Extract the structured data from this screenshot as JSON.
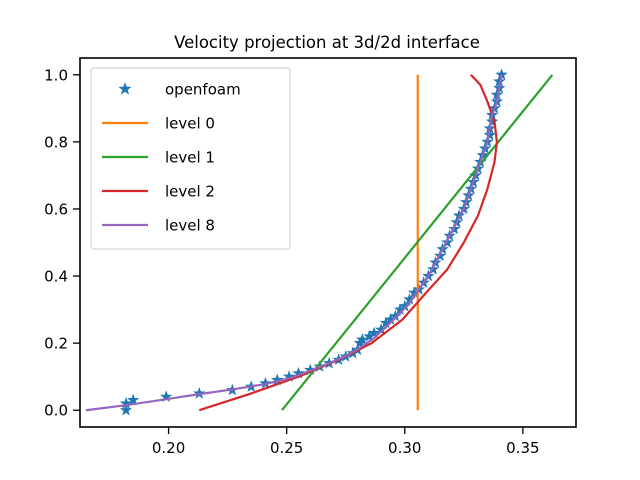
{
  "chart_data": {
    "type": "line",
    "title": "Velocity projection at 3d/2d interface",
    "xlabel": "",
    "ylabel": "",
    "xlim": [
      0.1625,
      0.3725
    ],
    "ylim": [
      -0.05,
      1.05
    ],
    "xticks": [
      {
        "value": 0.2,
        "label": "0.20"
      },
      {
        "value": 0.25,
        "label": "0.25"
      },
      {
        "value": 0.3,
        "label": "0.30"
      },
      {
        "value": 0.35,
        "label": "0.35"
      }
    ],
    "yticks": [
      {
        "value": 0.0,
        "label": "0.0"
      },
      {
        "value": 0.2,
        "label": "0.2"
      },
      {
        "value": 0.4,
        "label": "0.4"
      },
      {
        "value": 0.6,
        "label": "0.6"
      },
      {
        "value": 0.8,
        "label": "0.8"
      },
      {
        "value": 1.0,
        "label": "1.0"
      }
    ],
    "grid": false,
    "legend": {
      "placement": "top-left"
    },
    "series": [
      {
        "name": "openfoam",
        "kind": "scatter",
        "marker": "star",
        "color": "#1f77b4",
        "points": [
          [
            0.182,
            0.0
          ],
          [
            0.182,
            0.02
          ],
          [
            0.185,
            0.03
          ],
          [
            0.199,
            0.04
          ],
          [
            0.213,
            0.05
          ],
          [
            0.227,
            0.06
          ],
          [
            0.235,
            0.07
          ],
          [
            0.241,
            0.08
          ],
          [
            0.246,
            0.09
          ],
          [
            0.251,
            0.1
          ],
          [
            0.255,
            0.11
          ],
          [
            0.26,
            0.12
          ],
          [
            0.264,
            0.13
          ],
          [
            0.268,
            0.14
          ],
          [
            0.272,
            0.15
          ],
          [
            0.275,
            0.16
          ],
          [
            0.278,
            0.17
          ],
          [
            0.28,
            0.18
          ],
          [
            0.281,
            0.2
          ],
          [
            0.282,
            0.21
          ],
          [
            0.285,
            0.22
          ],
          [
            0.287,
            0.23
          ],
          [
            0.29,
            0.24
          ],
          [
            0.292,
            0.26
          ],
          [
            0.294,
            0.27
          ],
          [
            0.296,
            0.28
          ],
          [
            0.298,
            0.3
          ],
          [
            0.3,
            0.31
          ],
          [
            0.302,
            0.33
          ],
          [
            0.304,
            0.35
          ],
          [
            0.306,
            0.36
          ],
          [
            0.308,
            0.38
          ],
          [
            0.31,
            0.4
          ],
          [
            0.312,
            0.42
          ],
          [
            0.313,
            0.44
          ],
          [
            0.315,
            0.46
          ],
          [
            0.316,
            0.48
          ],
          [
            0.318,
            0.5
          ],
          [
            0.319,
            0.52
          ],
          [
            0.321,
            0.54
          ],
          [
            0.322,
            0.56
          ],
          [
            0.323,
            0.58
          ],
          [
            0.325,
            0.6
          ],
          [
            0.326,
            0.62
          ],
          [
            0.327,
            0.64
          ],
          [
            0.328,
            0.66
          ],
          [
            0.329,
            0.68
          ],
          [
            0.33,
            0.7
          ],
          [
            0.331,
            0.72
          ],
          [
            0.332,
            0.74
          ],
          [
            0.333,
            0.76
          ],
          [
            0.334,
            0.78
          ],
          [
            0.335,
            0.8
          ],
          [
            0.336,
            0.82
          ],
          [
            0.336,
            0.84
          ],
          [
            0.337,
            0.86
          ],
          [
            0.337,
            0.88
          ],
          [
            0.338,
            0.9
          ],
          [
            0.339,
            0.92
          ],
          [
            0.339,
            0.94
          ],
          [
            0.34,
            0.96
          ],
          [
            0.34,
            0.98
          ],
          [
            0.341,
            1.0
          ]
        ]
      },
      {
        "name": "level 0",
        "kind": "line",
        "color": "#ff7f0e",
        "points": [
          [
            0.3055,
            0.0
          ],
          [
            0.3055,
            1.0
          ]
        ]
      },
      {
        "name": "level 1",
        "kind": "line",
        "color": "#2ca02c",
        "points": [
          [
            0.248,
            0.0
          ],
          [
            0.3625,
            1.0
          ]
        ]
      },
      {
        "name": "level 2",
        "kind": "line",
        "color": "#d62728",
        "points": [
          [
            0.213,
            0.0
          ],
          [
            0.235,
            0.05
          ],
          [
            0.255,
            0.1
          ],
          [
            0.272,
            0.15
          ],
          [
            0.286,
            0.2
          ],
          [
            0.299,
            0.27
          ],
          [
            0.309,
            0.35
          ],
          [
            0.318,
            0.42
          ],
          [
            0.325,
            0.5
          ],
          [
            0.331,
            0.58
          ],
          [
            0.335,
            0.66
          ],
          [
            0.338,
            0.74
          ],
          [
            0.339,
            0.8
          ],
          [
            0.338,
            0.86
          ],
          [
            0.335,
            0.92
          ],
          [
            0.332,
            0.97
          ],
          [
            0.328,
            1.0
          ]
        ]
      },
      {
        "name": "level 8",
        "kind": "line",
        "color": "#9467bd",
        "points": [
          [
            0.165,
            0.0
          ],
          [
            0.182,
            0.015
          ],
          [
            0.199,
            0.033
          ],
          [
            0.213,
            0.048
          ],
          [
            0.227,
            0.062
          ],
          [
            0.241,
            0.078
          ],
          [
            0.251,
            0.095
          ],
          [
            0.26,
            0.118
          ],
          [
            0.268,
            0.14
          ],
          [
            0.275,
            0.162
          ],
          [
            0.281,
            0.186
          ],
          [
            0.287,
            0.215
          ],
          [
            0.292,
            0.248
          ],
          [
            0.297,
            0.282
          ],
          [
            0.302,
            0.32
          ],
          [
            0.306,
            0.36
          ],
          [
            0.31,
            0.4
          ],
          [
            0.313,
            0.44
          ],
          [
            0.316,
            0.48
          ],
          [
            0.319,
            0.52
          ],
          [
            0.322,
            0.56
          ],
          [
            0.325,
            0.6
          ],
          [
            0.327,
            0.64
          ],
          [
            0.329,
            0.68
          ],
          [
            0.331,
            0.72
          ],
          [
            0.333,
            0.76
          ],
          [
            0.335,
            0.8
          ],
          [
            0.336,
            0.84
          ],
          [
            0.337,
            0.88
          ],
          [
            0.339,
            0.92
          ],
          [
            0.34,
            0.96
          ],
          [
            0.341,
            1.0
          ]
        ]
      }
    ]
  }
}
